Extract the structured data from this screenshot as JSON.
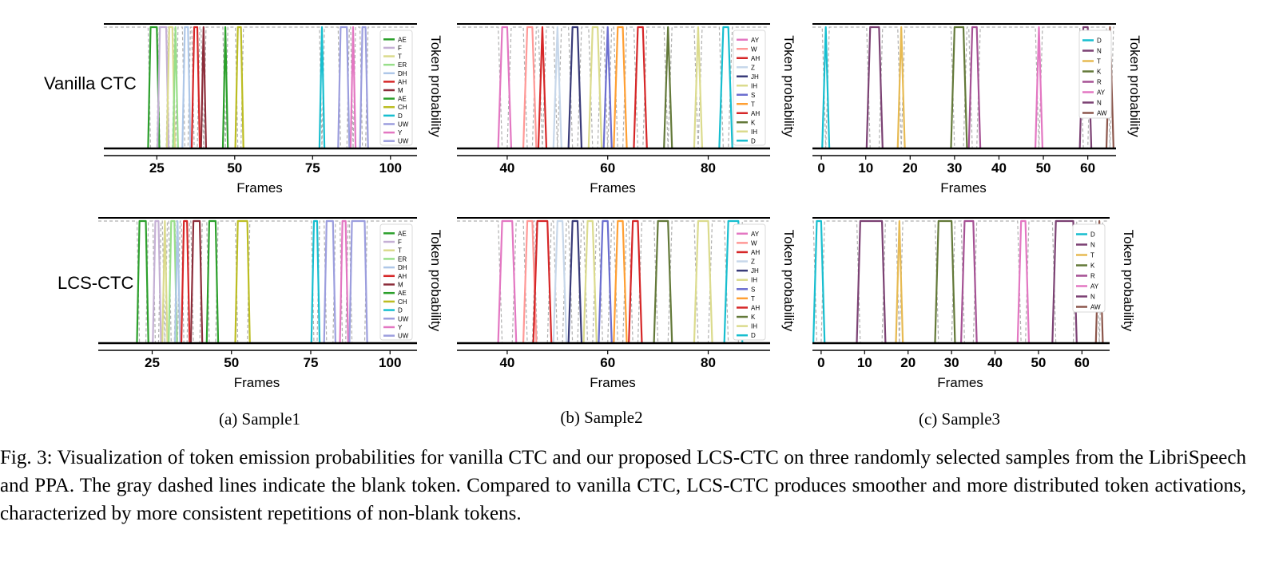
{
  "row_labels": [
    "Vanilla CTC",
    "LCS-CTC"
  ],
  "subcaptions": [
    "(a) Sample1",
    "(b) Sample2",
    "(c) Sample3"
  ],
  "caption": "Fig. 3: Visualization of token emission probabilities for vanilla CTC and our proposed LCS-CTC on three randomly selected samples from the LibriSpeech and PPA. The gray dashed lines indicate the blank token. Compared to vanilla CTC, LCS-CTC produces smoother and more distributed token activations, characterized by more consistent repetitions of non-blank tokens.",
  "colors": {
    "blank": "#b0b0b0",
    "axis": "#000000"
  },
  "chart_data": [
    {
      "type": "line",
      "sample": "Sample1",
      "row": "Vanilla CTC",
      "xlabel": "Frames",
      "ylabel": "Token probability",
      "xlim": [
        8,
        108
      ],
      "ylim": [
        0,
        1
      ],
      "xticks": [
        25,
        50,
        75,
        100
      ],
      "legend": "right",
      "series": [
        {
          "name": "AE",
          "color": "#2ca02c",
          "peaks": [
            [
              23,
              25
            ]
          ]
        },
        {
          "name": "F",
          "color": "#c5b0d5",
          "peaks": [
            [
              26,
              28
            ]
          ]
        },
        {
          "name": "T",
          "color": "#dbdb8d",
          "peaks": [
            [
              29,
              30
            ]
          ]
        },
        {
          "name": "ER",
          "color": "#98df8a",
          "peaks": [
            [
              31,
              31
            ]
          ]
        },
        {
          "name": "DH",
          "color": "#aec7e8",
          "peaks": [
            [
              34,
              35
            ]
          ]
        },
        {
          "name": "AH",
          "color": "#d62728",
          "peaks": [
            [
              37,
              38
            ]
          ]
        },
        {
          "name": "M",
          "color": "#8c2d3a",
          "peaks": [
            [
              40,
              40
            ]
          ]
        },
        {
          "name": "AE",
          "color": "#2ca02c",
          "peaks": [
            [
              47,
              47
            ]
          ]
        },
        {
          "name": "CH",
          "color": "#bcbd22",
          "peaks": [
            [
              51,
              52
            ]
          ]
        },
        {
          "name": "D",
          "color": "#17becf",
          "peaks": [
            [
              78,
              78
            ]
          ]
        },
        {
          "name": "UW",
          "color": "#9c9ede",
          "peaks": [
            [
              84,
              86
            ]
          ]
        },
        {
          "name": "Y",
          "color": "#e377c2",
          "peaks": [
            [
              88,
              88
            ]
          ]
        },
        {
          "name": "UW",
          "color": "#9c9ede",
          "peaks": [
            [
              91,
              92
            ]
          ]
        }
      ]
    },
    {
      "type": "line",
      "sample": "Sample2",
      "row": "Vanilla CTC",
      "xlabel": "Frames",
      "ylabel": "Token probability",
      "xlim": [
        30,
        92
      ],
      "ylim": [
        0,
        1
      ],
      "xticks": [
        40,
        60,
        80
      ],
      "legend": "right",
      "series": [
        {
          "name": "AY",
          "color": "#e377c2",
          "peaks": [
            [
              39,
              40
            ]
          ]
        },
        {
          "name": "W",
          "color": "#ff9896",
          "peaks": [
            [
              44,
              45
            ]
          ]
        },
        {
          "name": "AH",
          "color": "#d62728",
          "peaks": [
            [
              47,
              47
            ]
          ]
        },
        {
          "name": "Z",
          "color": "#c7d7ea",
          "peaks": [
            [
              50,
              50
            ]
          ]
        },
        {
          "name": "JH",
          "color": "#393b79",
          "peaks": [
            [
              53,
              54
            ]
          ]
        },
        {
          "name": "IH",
          "color": "#dbdb8d",
          "peaks": [
            [
              57,
              58
            ]
          ]
        },
        {
          "name": "S",
          "color": "#6b6ecf",
          "peaks": [
            [
              60,
              60
            ]
          ]
        },
        {
          "name": "T",
          "color": "#ff9f33",
          "peaks": [
            [
              62,
              63
            ]
          ]
        },
        {
          "name": "AH",
          "color": "#d62728",
          "peaks": [
            [
              66,
              67
            ]
          ]
        },
        {
          "name": "K",
          "color": "#637939",
          "peaks": [
            [
              72,
              72
            ]
          ]
        },
        {
          "name": "IH",
          "color": "#dbdb8d",
          "peaks": [
            [
              78,
              78
            ]
          ]
        },
        {
          "name": "D",
          "color": "#17becf",
          "peaks": [
            [
              83,
              84
            ]
          ]
        }
      ]
    },
    {
      "type": "line",
      "sample": "Sample3",
      "row": "Vanilla CTC",
      "xlabel": "Frames",
      "ylabel": "Token probability",
      "xlim": [
        -2,
        66
      ],
      "ylim": [
        0,
        1
      ],
      "xticks": [
        0,
        10,
        20,
        30,
        40,
        50,
        60
      ],
      "legend": "right",
      "series": [
        {
          "name": "D",
          "color": "#17becf",
          "peaks": [
            [
              1,
              1
            ]
          ]
        },
        {
          "name": "N",
          "color": "#7b4173",
          "peaks": [
            [
              11,
              13
            ]
          ]
        },
        {
          "name": "T",
          "color": "#e7ba52",
          "peaks": [
            [
              18,
              18
            ]
          ]
        },
        {
          "name": "K",
          "color": "#637939",
          "peaks": [
            [
              30,
              32
            ]
          ]
        },
        {
          "name": "R",
          "color": "#a55194",
          "peaks": [
            [
              34,
              35
            ]
          ]
        },
        {
          "name": "AY",
          "color": "#e377c2",
          "peaks": [
            [
              49,
              49
            ]
          ]
        },
        {
          "name": "N",
          "color": "#7b4173",
          "peaks": [
            [
              59,
              60
            ]
          ]
        },
        {
          "name": "AW",
          "color": "#8c564b",
          "peaks": [
            [
              65,
              65
            ]
          ]
        }
      ]
    },
    {
      "type": "line",
      "sample": "Sample1",
      "row": "LCS-CTC",
      "xlabel": "Frames",
      "ylabel": "Token probability",
      "xlim": [
        8,
        108
      ],
      "ylim": [
        0,
        1
      ],
      "xticks": [
        25,
        50,
        75,
        100
      ],
      "legend": "right",
      "series": [
        {
          "name": "AE",
          "color": "#2ca02c",
          "peaks": [
            [
              21,
              23
            ]
          ]
        },
        {
          "name": "F",
          "color": "#c5b0d5",
          "peaks": [
            [
              26,
              27
            ]
          ]
        },
        {
          "name": "T",
          "color": "#dbdb8d",
          "peaks": [
            [
              29,
              29
            ]
          ]
        },
        {
          "name": "ER",
          "color": "#98df8a",
          "peaks": [
            [
              31,
              32
            ]
          ]
        },
        {
          "name": "DH",
          "color": "#aec7e8",
          "peaks": [
            [
              33,
              33
            ]
          ]
        },
        {
          "name": "AH",
          "color": "#d62728",
          "peaks": [
            [
              35,
              36
            ]
          ]
        },
        {
          "name": "M",
          "color": "#8c2d3a",
          "peaks": [
            [
              38,
              40
            ]
          ]
        },
        {
          "name": "AE",
          "color": "#2ca02c",
          "peaks": [
            [
              43,
              45
            ]
          ]
        },
        {
          "name": "CH",
          "color": "#bcbd22",
          "peaks": [
            [
              52,
              55
            ]
          ]
        },
        {
          "name": "D",
          "color": "#17becf",
          "peaks": [
            [
              76,
              77
            ]
          ]
        },
        {
          "name": "UW",
          "color": "#9c9ede",
          "peaks": [
            [
              80,
              82
            ]
          ]
        },
        {
          "name": "Y",
          "color": "#e377c2",
          "peaks": [
            [
              85,
              86
            ]
          ]
        },
        {
          "name": "UW",
          "color": "#9c9ede",
          "peaks": [
            [
              88,
              92
            ]
          ]
        }
      ]
    },
    {
      "type": "line",
      "sample": "Sample2",
      "row": "LCS-CTC",
      "xlabel": "Frames",
      "ylabel": "Token probability",
      "xlim": [
        30,
        92
      ],
      "ylim": [
        0,
        1
      ],
      "xticks": [
        40,
        60,
        80
      ],
      "legend": "right",
      "series": [
        {
          "name": "AY",
          "color": "#e377c2",
          "peaks": [
            [
              39,
              41
            ]
          ]
        },
        {
          "name": "W",
          "color": "#ff9896",
          "peaks": [
            [
              44,
              45
            ]
          ]
        },
        {
          "name": "AH",
          "color": "#d62728",
          "peaks": [
            [
              46,
              48
            ]
          ]
        },
        {
          "name": "Z",
          "color": "#c7d7ea",
          "peaks": [
            [
              50,
              51
            ]
          ]
        },
        {
          "name": "JH",
          "color": "#393b79",
          "peaks": [
            [
              53,
              54
            ]
          ]
        },
        {
          "name": "IH",
          "color": "#dbdb8d",
          "peaks": [
            [
              56,
              57
            ]
          ]
        },
        {
          "name": "S",
          "color": "#6b6ecf",
          "peaks": [
            [
              59,
              60
            ]
          ]
        },
        {
          "name": "T",
          "color": "#ff9f33",
          "peaks": [
            [
              62,
              63
            ]
          ]
        },
        {
          "name": "AH",
          "color": "#d62728",
          "peaks": [
            [
              65,
              66
            ]
          ]
        },
        {
          "name": "K",
          "color": "#637939",
          "peaks": [
            [
              70,
              72
            ]
          ]
        },
        {
          "name": "IH",
          "color": "#dbdb8d",
          "peaks": [
            [
              78,
              80
            ]
          ]
        },
        {
          "name": "D",
          "color": "#17becf",
          "peaks": [
            [
              84,
              86
            ]
          ]
        }
      ]
    },
    {
      "type": "line",
      "sample": "Sample3",
      "row": "LCS-CTC",
      "xlabel": "Frames",
      "ylabel": "Token probability",
      "xlim": [
        -2,
        66
      ],
      "ylim": [
        0,
        1
      ],
      "xticks": [
        0,
        10,
        20,
        30,
        40,
        50,
        60
      ],
      "legend": "right",
      "series": [
        {
          "name": "D",
          "color": "#17becf",
          "peaks": [
            [
              -1,
              0
            ]
          ]
        },
        {
          "name": "N",
          "color": "#7b4173",
          "peaks": [
            [
              9,
              14
            ]
          ]
        },
        {
          "name": "T",
          "color": "#e7ba52",
          "peaks": [
            [
              18,
              18
            ]
          ]
        },
        {
          "name": "K",
          "color": "#637939",
          "peaks": [
            [
              27,
              30
            ]
          ]
        },
        {
          "name": "R",
          "color": "#a55194",
          "peaks": [
            [
              33,
              35
            ]
          ]
        },
        {
          "name": "AY",
          "color": "#e377c2",
          "peaks": [
            [
              46,
              47
            ]
          ]
        },
        {
          "name": "N",
          "color": "#7b4173",
          "peaks": [
            [
              54,
              58
            ]
          ]
        },
        {
          "name": "AW",
          "color": "#8c564b",
          "peaks": [
            [
              64,
              64
            ]
          ]
        }
      ]
    }
  ]
}
